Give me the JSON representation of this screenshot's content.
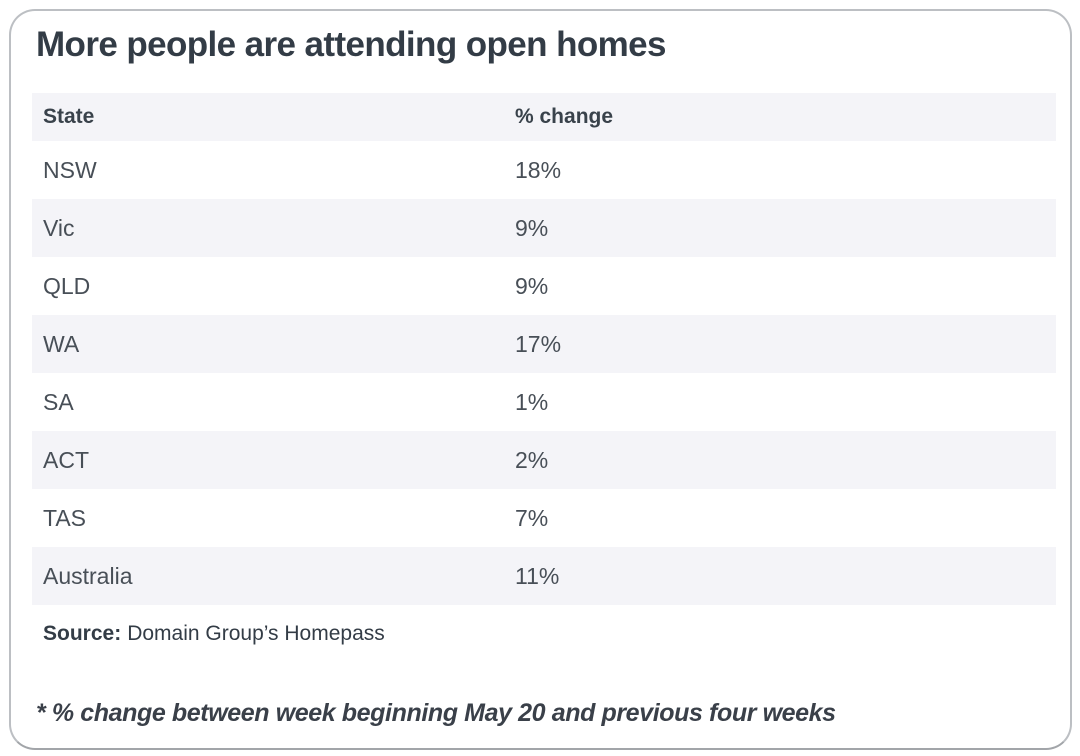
{
  "title": "More people are attending open homes",
  "header": {
    "state": "State",
    "change": "% change"
  },
  "chart_data": {
    "type": "table",
    "title": "More people are attending open homes",
    "columns": [
      "State",
      "% change"
    ],
    "rows": [
      {
        "state": "NSW",
        "change": "18%"
      },
      {
        "state": "Vic",
        "change": "9%"
      },
      {
        "state": "QLD",
        "change": "9%"
      },
      {
        "state": "WA",
        "change": "17%"
      },
      {
        "state": "SA",
        "change": "1%"
      },
      {
        "state": "ACT",
        "change": "2%"
      },
      {
        "state": "TAS",
        "change": "7%"
      },
      {
        "state": "Australia",
        "change": "11%"
      }
    ],
    "values_pct": [
      18,
      9,
      9,
      17,
      1,
      2,
      7,
      11
    ],
    "source": "Domain Group’s Homepass",
    "layout": {
      "row_striping": "alternate",
      "stripe_color": "#f4f4f8"
    }
  },
  "source": {
    "label": "Source:",
    "text": "Domain Group’s Homepass"
  },
  "footnote": "* % change between week beginning May 20 and previous four weeks",
  "colors": {
    "heading_text": "#333c46",
    "body_text": "#484f57",
    "row_alt_bg": "#f4f4f8",
    "card_border": "#bcbfc3",
    "card_bg": "#ffffff"
  }
}
